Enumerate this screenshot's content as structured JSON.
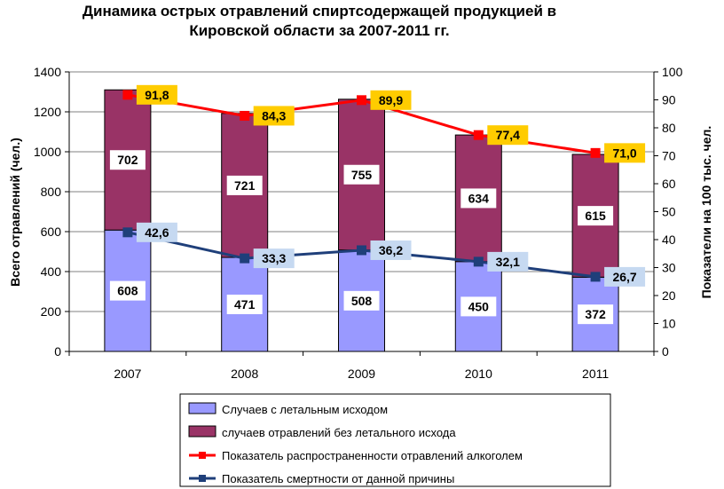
{
  "chart_data": {
    "type": "bar",
    "stacked": true,
    "title_line1": "Динамика острых отравлений спиртсодержащей продукцией в",
    "title_line2": "Кировской области за 2007-2011 гг.",
    "ylabel": "Всего отравлений (чел.)",
    "y2label": "Показатели на 100 тыс. чел.",
    "xlabel": "",
    "categories": [
      "2007",
      "2008",
      "2009",
      "2010",
      "2011"
    ],
    "ylim": [
      0,
      1400
    ],
    "y_ticks": [
      "0",
      "200",
      "400",
      "600",
      "800",
      "1000",
      "1200",
      "1400"
    ],
    "y2lim": [
      0,
      100
    ],
    "y2_ticks": [
      "0",
      "10",
      "20",
      "30",
      "40",
      "50",
      "60",
      "70",
      "80",
      "90",
      "100"
    ],
    "grid": true,
    "legend_position": "bottom",
    "bar_series": [
      {
        "name": "Случаев с летальным исходом",
        "values": [
          608,
          471,
          508,
          450,
          372
        ],
        "labels": [
          "608",
          "471",
          "508",
          "450",
          "372"
        ],
        "color": "#9999ff"
      },
      {
        "name": "случаев отравлений без летального исхода",
        "values": [
          702,
          721,
          755,
          634,
          615
        ],
        "labels": [
          "702",
          "721",
          "755",
          "634",
          "615"
        ],
        "color": "#993366"
      }
    ],
    "line_series": [
      {
        "name": "Показатель распространенности отравлений алкоголем",
        "axis": "right",
        "values": [
          91.8,
          84.3,
          89.9,
          77.4,
          71.0
        ],
        "labels": [
          "91,8",
          "84,3",
          "89,9",
          "77,4",
          "71,0"
        ],
        "color": "#ff0000",
        "label_bg": "#ffcc00"
      },
      {
        "name": "Показатель смертности от данной причины",
        "axis": "right",
        "values": [
          42.6,
          33.3,
          36.2,
          32.1,
          26.7
        ],
        "labels": [
          "42,6",
          "33,3",
          "36,2",
          "32,1",
          "26,7"
        ],
        "color": "#1f3f7a",
        "label_bg": "#c6d9f1"
      }
    ]
  }
}
